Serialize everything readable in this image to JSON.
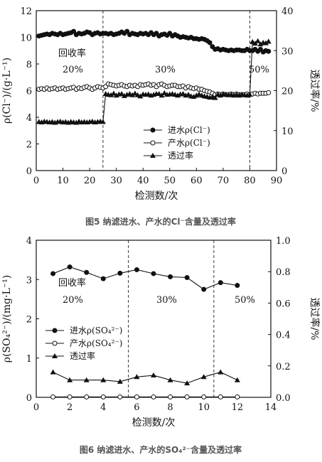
{
  "chart_data": [
    {
      "type": "line",
      "caption": "图5 纳滤进水、产水的Cl⁻含量及透过率",
      "xlabel": "检测数/次",
      "ylabel_left": "ρ(Cl⁻)/(g·L⁻¹)",
      "ylabel_right": "透过率/%",
      "xlim": [
        0,
        90
      ],
      "xticks": [
        0,
        10,
        20,
        30,
        40,
        50,
        60,
        70,
        80,
        90
      ],
      "ylim_left": [
        0,
        12
      ],
      "yticks_left": [
        0,
        2,
        4,
        6,
        8,
        10,
        12
      ],
      "ylim_right": [
        0,
        40
      ],
      "yticks_right": [
        0,
        10,
        20,
        30,
        40
      ],
      "annotations": {
        "title": "回收率",
        "labels": [
          "20%",
          "30%",
          "50%"
        ]
      },
      "dividers_x": [
        25,
        80
      ],
      "legend": [
        "进水ρ(Cl⁻)",
        "产水ρ(Cl⁻)",
        "透过率"
      ],
      "series": [
        {
          "name": "进水ρ(Cl⁻)",
          "axis": "left",
          "x": [
            1,
            2,
            3,
            4,
            5,
            6,
            7,
            8,
            9,
            10,
            11,
            12,
            13,
            14,
            15,
            16,
            17,
            18,
            19,
            20,
            21,
            22,
            23,
            24,
            25,
            26,
            27,
            28,
            29,
            30,
            31,
            32,
            33,
            34,
            35,
            36,
            37,
            38,
            39,
            40,
            41,
            42,
            43,
            44,
            45,
            46,
            47,
            48,
            49,
            50,
            51,
            52,
            53,
            54,
            55,
            56,
            57,
            58,
            59,
            60,
            61,
            62,
            63,
            64,
            65,
            66,
            67,
            68,
            69,
            70,
            71,
            72,
            73,
            74,
            75,
            76,
            77,
            78,
            79,
            80,
            81,
            82,
            83,
            84,
            85,
            86,
            87
          ],
          "values": [
            10.1,
            10.15,
            10.2,
            10.25,
            10.2,
            10.3,
            10.25,
            10.2,
            10.3,
            10.2,
            10.25,
            10.3,
            10.35,
            10.45,
            10.2,
            10.3,
            10.25,
            10.3,
            10.4,
            10.35,
            10.2,
            10.3,
            10.35,
            10.25,
            10.3,
            10.3,
            10.25,
            10.3,
            10.2,
            10.25,
            10.3,
            10.4,
            10.3,
            10.45,
            10.2,
            10.3,
            10.25,
            10.2,
            10.3,
            10.25,
            10.3,
            10.2,
            10.35,
            10.2,
            10.3,
            10.1,
            10.2,
            10.25,
            10.15,
            10.3,
            10.1,
            10.2,
            10.1,
            10.0,
            10.05,
            10.0,
            9.95,
            10.0,
            9.9,
            9.9,
            9.85,
            9.9,
            9.85,
            9.75,
            9.6,
            9.3,
            9.1,
            9.15,
            9.05,
            9.1,
            9.05,
            9.0,
            9.05,
            9.0,
            9.05,
            9.05,
            9.0,
            9.0,
            9.1,
            9.0,
            9.0,
            9.1,
            8.95,
            9.1,
            8.9,
            9.0,
            8.95
          ]
        },
        {
          "name": "产水ρ(Cl⁻)",
          "axis": "left",
          "x": [
            1,
            2,
            3,
            4,
            5,
            6,
            7,
            8,
            9,
            10,
            11,
            12,
            13,
            14,
            15,
            16,
            17,
            18,
            19,
            20,
            21,
            22,
            23,
            24,
            25,
            26,
            27,
            28,
            29,
            30,
            31,
            32,
            33,
            34,
            35,
            36,
            37,
            38,
            39,
            40,
            41,
            42,
            43,
            44,
            45,
            46,
            47,
            48,
            49,
            50,
            51,
            52,
            53,
            54,
            55,
            56,
            57,
            58,
            59,
            60,
            61,
            62,
            63,
            64,
            65,
            66,
            67,
            68,
            69,
            70,
            71,
            72,
            73,
            74,
            75,
            76,
            77,
            78,
            79,
            80,
            81,
            82,
            83,
            84,
            85,
            86,
            87
          ],
          "values": [
            6.1,
            6.15,
            6.1,
            6.2,
            6.1,
            6.15,
            6.2,
            6.1,
            6.15,
            6.2,
            6.1,
            6.15,
            6.2,
            6.25,
            6.1,
            6.2,
            6.15,
            6.25,
            6.3,
            6.2,
            6.1,
            6.2,
            6.3,
            6.25,
            6.2,
            6.3,
            6.5,
            6.45,
            6.4,
            6.35,
            6.4,
            6.45,
            6.35,
            6.3,
            6.4,
            6.35,
            6.4,
            6.3,
            6.45,
            6.4,
            6.45,
            6.5,
            6.4,
            6.45,
            6.3,
            6.45,
            6.5,
            6.4,
            6.3,
            6.35,
            6.4,
            6.4,
            6.3,
            6.3,
            6.35,
            6.2,
            6.3,
            6.2,
            6.15,
            6.2,
            6.1,
            6.1,
            6.0,
            5.95,
            5.9,
            5.8,
            5.7,
            5.75,
            5.7,
            5.75,
            5.7,
            5.7,
            5.75,
            5.7,
            5.75,
            5.7,
            5.7,
            5.7,
            5.75,
            5.7,
            5.75,
            5.8,
            5.75,
            5.8,
            5.8,
            5.8,
            5.85
          ]
        },
        {
          "name": "透过率",
          "axis": "right",
          "x": [
            1,
            2,
            3,
            4,
            5,
            6,
            7,
            8,
            9,
            10,
            11,
            12,
            13,
            14,
            15,
            16,
            17,
            18,
            19,
            20,
            21,
            22,
            23,
            24,
            25,
            26,
            27,
            28,
            29,
            30,
            31,
            32,
            33,
            34,
            35,
            36,
            37,
            38,
            39,
            40,
            41,
            42,
            43,
            44,
            45,
            46,
            47,
            48,
            49,
            50,
            51,
            52,
            53,
            54,
            55,
            56,
            57,
            58,
            59,
            60,
            61,
            62,
            63,
            64,
            65,
            66,
            67,
            68,
            69,
            70,
            71,
            72,
            73,
            74,
            75,
            76,
            77,
            78,
            79,
            80,
            81,
            82,
            83,
            84,
            85,
            86,
            87
          ],
          "values": [
            12.2,
            12.1,
            12.3,
            12.2,
            12.1,
            12.2,
            12.0,
            12.2,
            12.3,
            12.1,
            12.2,
            12.0,
            12.2,
            12.1,
            12.0,
            12.3,
            12.1,
            12.2,
            12.1,
            12.2,
            12.3,
            12.1,
            12.2,
            12.3,
            12.2,
            19.2,
            19.0,
            18.9,
            19.3,
            18.8,
            19.1,
            19.2,
            18.7,
            19.0,
            19.2,
            18.9,
            19.3,
            18.9,
            18.6,
            19.1,
            19.0,
            19.1,
            18.8,
            19.0,
            19.2,
            19.2,
            18.8,
            19.4,
            19.0,
            19.1,
            19.2,
            19.0,
            18.8,
            19.1,
            19.2,
            18.8,
            19.0,
            18.6,
            18.5,
            18.8,
            19.1,
            18.8,
            18.6,
            18.5,
            18.3,
            18.4,
            18.2,
            19.0,
            18.8,
            19.1,
            19.0,
            18.9,
            19.0,
            18.8,
            19.0,
            18.8,
            19.0,
            18.9,
            18.8,
            19.0,
            32.2,
            31.8,
            32.4,
            31.6,
            32.0,
            31.9,
            32.3
          ]
        }
      ]
    },
    {
      "type": "line",
      "caption": "图6 纳滤进水、产水的SO₄²⁻含量及透过率",
      "xlabel": "检测数/次",
      "ylabel_left": "ρ(SO₄²⁻)/(mg·L⁻¹)",
      "ylabel_right": "透过率/%",
      "xlim": [
        0,
        14
      ],
      "xticks": [
        0,
        2,
        4,
        6,
        8,
        10,
        12,
        14
      ],
      "ylim_left": [
        0,
        4
      ],
      "yticks_left": [
        0,
        1,
        2,
        3,
        4
      ],
      "ylim_right": [
        0,
        1.0
      ],
      "yticks_right": [
        "0.0",
        "0.2",
        "0.4",
        "0.6",
        "0.8",
        "1.0"
      ],
      "annotations": {
        "title": "回收率",
        "labels": [
          "20%",
          "30%",
          "50%"
        ]
      },
      "dividers_x": [
        5.5,
        10.6
      ],
      "legend": [
        "进水ρ(SO₄²⁻)",
        "产水ρ(SO₄²⁻)",
        "透过率"
      ],
      "series": [
        {
          "name": "进水ρ(SO₄²⁻)",
          "axis": "left",
          "x": [
            1,
            2,
            3,
            4,
            5,
            6,
            7,
            8,
            9,
            10,
            11,
            12
          ],
          "values": [
            3.15,
            3.32,
            3.18,
            3.02,
            3.16,
            3.25,
            3.15,
            3.07,
            3.05,
            2.75,
            2.92,
            2.85
          ]
        },
        {
          "name": "产水ρ(SO₄²⁻)",
          "axis": "left",
          "x": [
            1,
            2,
            3,
            4,
            5,
            6,
            7,
            8,
            9,
            10,
            11,
            12
          ],
          "values": [
            0.01,
            0.01,
            0.01,
            0.01,
            0.01,
            0.01,
            0.01,
            0.01,
            0.01,
            0.01,
            0.01,
            0.01
          ]
        },
        {
          "name": "透过率",
          "axis": "right",
          "x": [
            1,
            2,
            3,
            4,
            5,
            6,
            7,
            8,
            9,
            10,
            11,
            12
          ],
          "values": [
            0.16,
            0.11,
            0.11,
            0.11,
            0.1,
            0.13,
            0.14,
            0.11,
            0.09,
            0.13,
            0.16,
            0.11
          ]
        }
      ]
    }
  ]
}
